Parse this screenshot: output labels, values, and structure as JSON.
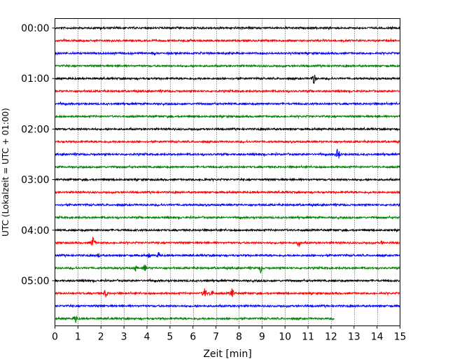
{
  "chart_data": {
    "type": "line",
    "title": "",
    "xlabel": "Zeit  [min]",
    "ylabel": "UTC (Lokalzeit = UTC + 01:00)",
    "xlim": [
      0,
      15
    ],
    "x_ticks": [
      0,
      1,
      2,
      3,
      4,
      5,
      6,
      7,
      8,
      9,
      10,
      11,
      12,
      13,
      14,
      15
    ],
    "y_ticks": [
      "00:00",
      "01:00",
      "02:00",
      "03:00",
      "04:00",
      "05:00"
    ],
    "grid": "vertical dotted",
    "trace_colors": [
      "#000000",
      "#ff0000",
      "#0000ff",
      "#008000"
    ],
    "row_interval_minutes": 15,
    "traces": [
      {
        "start": "00:00",
        "events": []
      },
      {
        "start": "00:15",
        "events": []
      },
      {
        "start": "00:30",
        "events": []
      },
      {
        "start": "00:45",
        "events": []
      },
      {
        "start": "01:00",
        "events": [
          {
            "t": 11.25,
            "amp": 10
          }
        ]
      },
      {
        "start": "01:15",
        "events": []
      },
      {
        "start": "01:30",
        "events": []
      },
      {
        "start": "01:45",
        "events": []
      },
      {
        "start": "02:00",
        "events": []
      },
      {
        "start": "02:15",
        "events": []
      },
      {
        "start": "02:30",
        "events": [
          {
            "t": 12.3,
            "amp": 12
          }
        ]
      },
      {
        "start": "02:45",
        "events": []
      },
      {
        "start": "03:00",
        "events": [
          {
            "t": 6.5,
            "amp": 4
          }
        ]
      },
      {
        "start": "03:15",
        "events": []
      },
      {
        "start": "03:30",
        "events": []
      },
      {
        "start": "03:45",
        "events": []
      },
      {
        "start": "04:00",
        "events": []
      },
      {
        "start": "04:15",
        "events": [
          {
            "t": 1.65,
            "amp": 10
          },
          {
            "t": 10.6,
            "amp": 7
          },
          {
            "t": 14.2,
            "amp": 4
          }
        ]
      },
      {
        "start": "04:30",
        "events": [
          {
            "t": 1.9,
            "amp": 5
          },
          {
            "t": 4.1,
            "amp": 5
          },
          {
            "t": 4.5,
            "amp": 6
          }
        ]
      },
      {
        "start": "04:45",
        "events": [
          {
            "t": 3.5,
            "amp": 6
          },
          {
            "t": 3.9,
            "amp": 7
          },
          {
            "t": 8.95,
            "amp": 8
          }
        ]
      },
      {
        "start": "05:00",
        "events": []
      },
      {
        "start": "05:15",
        "events": [
          {
            "t": 2.2,
            "amp": 8
          },
          {
            "t": 6.5,
            "amp": 10
          },
          {
            "t": 6.8,
            "amp": 8
          },
          {
            "t": 7.7,
            "amp": 9
          }
        ]
      },
      {
        "start": "05:30",
        "events": [
          {
            "t": 8.0,
            "amp": 3
          }
        ]
      },
      {
        "start": "05:45",
        "events": [
          {
            "t": 0.9,
            "amp": 8
          }
        ],
        "end": 12.15
      }
    ]
  }
}
